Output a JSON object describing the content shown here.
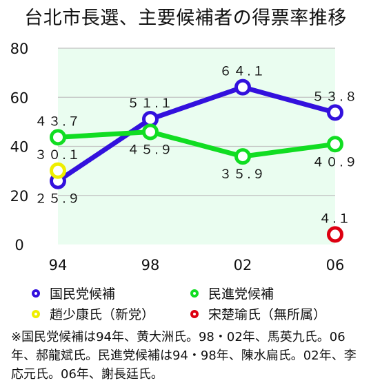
{
  "title": "台北市長選、主要候補者の得票率推移",
  "chart_data": {
    "type": "line",
    "categories": [
      "94",
      "98",
      "02",
      "06"
    ],
    "ylim": [
      0,
      80
    ],
    "yticks": [
      0,
      20,
      40,
      60,
      80
    ],
    "grid": true,
    "legend_placement": "bottom",
    "series": [
      {
        "name": "国民党候補",
        "color": "#3311dd",
        "values": [
          25.9,
          51.1,
          64.1,
          53.8
        ],
        "labels": [
          "２５.９",
          "５１.１",
          "６４.１",
          "５３.８"
        ],
        "label_pos": [
          "below",
          "above",
          "above",
          "above"
        ]
      },
      {
        "name": "民進党候補",
        "color": "#11dd22",
        "values": [
          43.7,
          45.9,
          35.9,
          40.9
        ],
        "labels": [
          "４３.７",
          "４５.９",
          "３５.９",
          "４０.９"
        ],
        "label_pos": [
          "above",
          "below",
          "below",
          "below"
        ]
      },
      {
        "name": "趙少康氏（新党）",
        "color": "#eeee00",
        "values": [
          30.1,
          null,
          null,
          null
        ],
        "labels": [
          "３０.１",
          null,
          null,
          null
        ],
        "label_pos": [
          "above",
          null,
          null,
          null
        ]
      },
      {
        "name": "宋楚瑜氏（無所属）",
        "color": "#dd0011",
        "values": [
          null,
          null,
          null,
          4.1
        ],
        "labels": [
          null,
          null,
          null,
          "４.１"
        ],
        "label_pos": [
          null,
          null,
          null,
          "above"
        ]
      }
    ]
  },
  "colors": {
    "plot_bg": "#eafdf0",
    "grid": "#c2c2c2"
  },
  "note": "※国民党候補は94年、黄大洲氏。98・02年、馬英九氏。06年、郝龍斌氏。民進党候補は94・98年、陳水扁氏。02年、李応元氏。06年、謝長廷氏。"
}
